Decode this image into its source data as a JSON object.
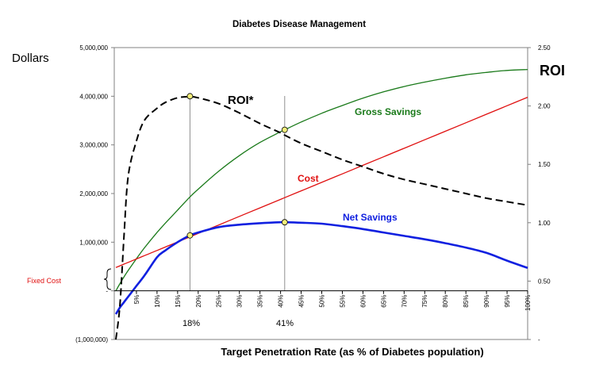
{
  "chart_data": {
    "type": "line",
    "title": "Diabetes Disease Management",
    "xlabel": "Target Penetration Rate (as % of Diabetes population)",
    "ylabel_left": "Dollars",
    "ylabel_right": "ROI",
    "left_axis": {
      "min": -1000000,
      "max": 5000000,
      "ticks": [
        -1000000,
        0,
        1000000,
        2000000,
        3000000,
        4000000,
        5000000
      ],
      "tick_labels": [
        "(1,000,000)",
        "-",
        "1,000,000",
        "2,000,000",
        "3,000,000",
        "4,000,000",
        "5,000,000"
      ]
    },
    "right_axis": {
      "min": 0,
      "max": 2.5,
      "ticks": [
        0,
        0.5,
        1.0,
        1.5,
        2.0,
        2.5
      ],
      "tick_labels": [
        "-",
        "0.50",
        "1.00",
        "1.50",
        "2.00",
        "2.50"
      ]
    },
    "x_axis": {
      "min": 0,
      "max": 100,
      "ticks": [
        5,
        10,
        15,
        20,
        25,
        30,
        35,
        40,
        45,
        50,
        55,
        60,
        65,
        70,
        75,
        80,
        85,
        90,
        95,
        100
      ],
      "tick_labels": [
        "5%",
        "10%",
        "15%",
        "20%",
        "25%",
        "30%",
        "35%",
        "40%",
        "45%",
        "50%",
        "55%",
        "60%",
        "65%",
        "70%",
        "75%",
        "80%",
        "85%",
        "90%",
        "95%",
        "100%"
      ]
    },
    "x": [
      0,
      1,
      2,
      3,
      5,
      7,
      10,
      12,
      15,
      18,
      20,
      25,
      30,
      35,
      40,
      41,
      45,
      50,
      55,
      60,
      65,
      70,
      75,
      80,
      85,
      90,
      95,
      100
    ],
    "series": [
      {
        "name": "Gross Savings",
        "axis": "left",
        "color": "#1a7a1a",
        "dash": false,
        "values": [
          0,
          150000,
          290000,
          420000,
          660000,
          890000,
          1200000,
          1390000,
          1660000,
          1930000,
          2090000,
          2460000,
          2780000,
          3050000,
          3270000,
          3310000,
          3470000,
          3650000,
          3810000,
          3960000,
          4090000,
          4200000,
          4290000,
          4370000,
          4440000,
          4490000,
          4530000,
          4550000
        ]
      },
      {
        "name": "Cost",
        "axis": "left",
        "color": "#e01010",
        "dash": false,
        "values": [
          480000,
          515000,
          550000,
          585000,
          655000,
          725000,
          830000,
          900000,
          1005000,
          1110000,
          1180000,
          1355000,
          1530000,
          1705000,
          1880000,
          1915000,
          2055000,
          2230000,
          2405000,
          2580000,
          2755000,
          2930000,
          3105000,
          3280000,
          3455000,
          3630000,
          3805000,
          3980000
        ]
      },
      {
        "name": "Net Savings",
        "axis": "left",
        "color": "#1020e0",
        "dash": false,
        "values": [
          -480000,
          -340000,
          -230000,
          -120000,
          100000,
          320000,
          690000,
          830000,
          1000000,
          1140000,
          1200000,
          1310000,
          1360000,
          1390000,
          1410000,
          1410000,
          1400000,
          1380000,
          1330000,
          1270000,
          1200000,
          1130000,
          1060000,
          980000,
          890000,
          780000,
          620000,
          470000
        ]
      },
      {
        "name": "ROI*",
        "axis": "right",
        "color": "#000000",
        "dash": true,
        "values": [
          0,
          0.3,
          0.9,
          1.4,
          1.7,
          1.88,
          1.98,
          2.03,
          2.07,
          2.08,
          2.07,
          2.02,
          1.94,
          1.85,
          1.77,
          1.75,
          1.68,
          1.61,
          1.54,
          1.48,
          1.42,
          1.37,
          1.33,
          1.29,
          1.25,
          1.21,
          1.18,
          1.15
        ]
      }
    ],
    "series_labels": [
      "ROI*",
      "Gross Savings",
      "Cost",
      "Net Savings"
    ],
    "annotations": {
      "fixed_cost": "Fixed Cost",
      "marker_18": "18%",
      "marker_41": "41%"
    },
    "reference_lines_x": [
      18,
      41
    ],
    "markers": [
      {
        "x": 18,
        "y": 4000000,
        "series": "ROI*"
      },
      {
        "x": 18,
        "y": 1140000,
        "series": "Net Savings"
      },
      {
        "x": 41,
        "y": 3310000,
        "series": "Gross Savings"
      },
      {
        "x": 41,
        "y": 1410000,
        "series": "Net Savings"
      }
    ],
    "marker_color": "#f5f07a",
    "grid": false,
    "legend": "inline labels on lines"
  }
}
